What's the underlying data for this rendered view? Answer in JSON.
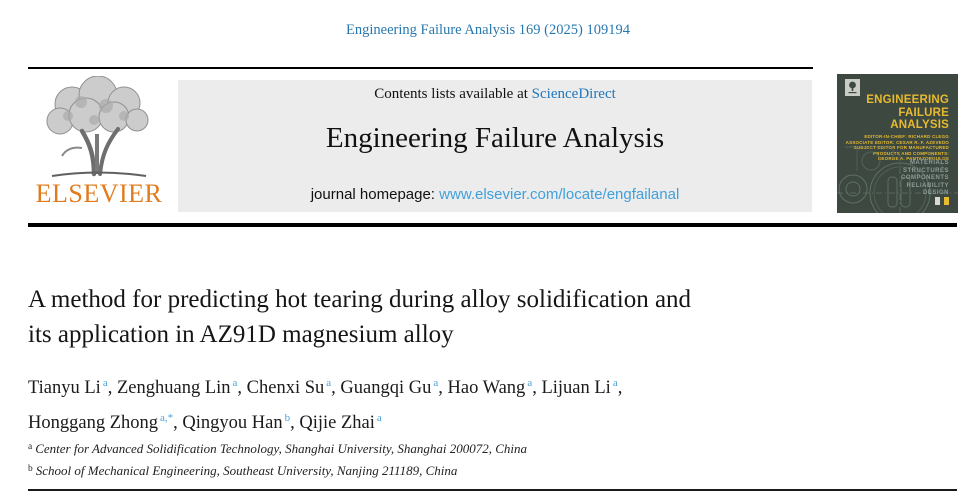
{
  "top": {
    "citation": "Engineering Failure Analysis 169 (2025) 109194"
  },
  "header": {
    "publisher": "ELSEVIER",
    "contents_prefix": "Contents lists available at ",
    "sciencedirect": "ScienceDirect",
    "journal_title": "Engineering Failure Analysis",
    "homepage_prefix": "journal homepage: ",
    "homepage_url": "www.elsevier.com/locate/engfailanal"
  },
  "cover": {
    "title_lines": [
      "ENGINEERING",
      "FAILURE",
      "ANALYSIS"
    ],
    "editor_lines": [
      "EDITOR-IN-CHIEF: RICHARD CLEGG",
      "ASSOCIATE EDITOR: CESAR R. F. AZEVEDO",
      "SUBJECT EDITOR FOR MANUFACTURED",
      "PRODUCTS AND COMPONENTS:",
      "GEORGE A. PANTAZOPOULOS"
    ],
    "keyword_lines": [
      "MATERIALS",
      "STRUCTURES",
      "COMPONENTS",
      "RELIABILITY",
      "DESIGN"
    ]
  },
  "article": {
    "title_lines": [
      "A method for predicting hot tearing during alloy solidification and",
      "its application in AZ91D magnesium alloy"
    ],
    "authors": [
      {
        "name": "Tianyu Li",
        "sup": "a"
      },
      {
        "name": "Zenghuang Lin",
        "sup": "a"
      },
      {
        "name": "Chenxi Su",
        "sup": "a"
      },
      {
        "name": "Guangqi Gu",
        "sup": "a"
      },
      {
        "name": "Hao Wang",
        "sup": "a"
      },
      {
        "name": "Lijuan Li",
        "sup": "a"
      },
      {
        "name": "Honggang Zhong",
        "sup": "a,*"
      },
      {
        "name": "Qingyou Han",
        "sup": "b"
      },
      {
        "name": "Qijie Zhai",
        "sup": "a"
      }
    ],
    "authors_line_break_after": 6,
    "affiliations": [
      {
        "sup": "a",
        "text": "Center for Advanced Solidification Technology, Shanghai University, Shanghai 200072, China"
      },
      {
        "sup": "b",
        "text": "School of Mechanical Engineering, Southeast University, Nanjing 211189, China"
      }
    ]
  },
  "colors": {
    "link_blue": "#2878b0",
    "sciencedirect_blue": "#1f76bb",
    "url_blue": "#41a0dc",
    "sup_blue": "#4da2d6",
    "elsevier_orange": "#e07b1e",
    "header_box_gray": "#ececec",
    "cover_green": "#3c4840",
    "cover_yellow": "#e8ba30",
    "cover_keyword_gray": "#8d9d99",
    "rule_black": "#000000"
  }
}
